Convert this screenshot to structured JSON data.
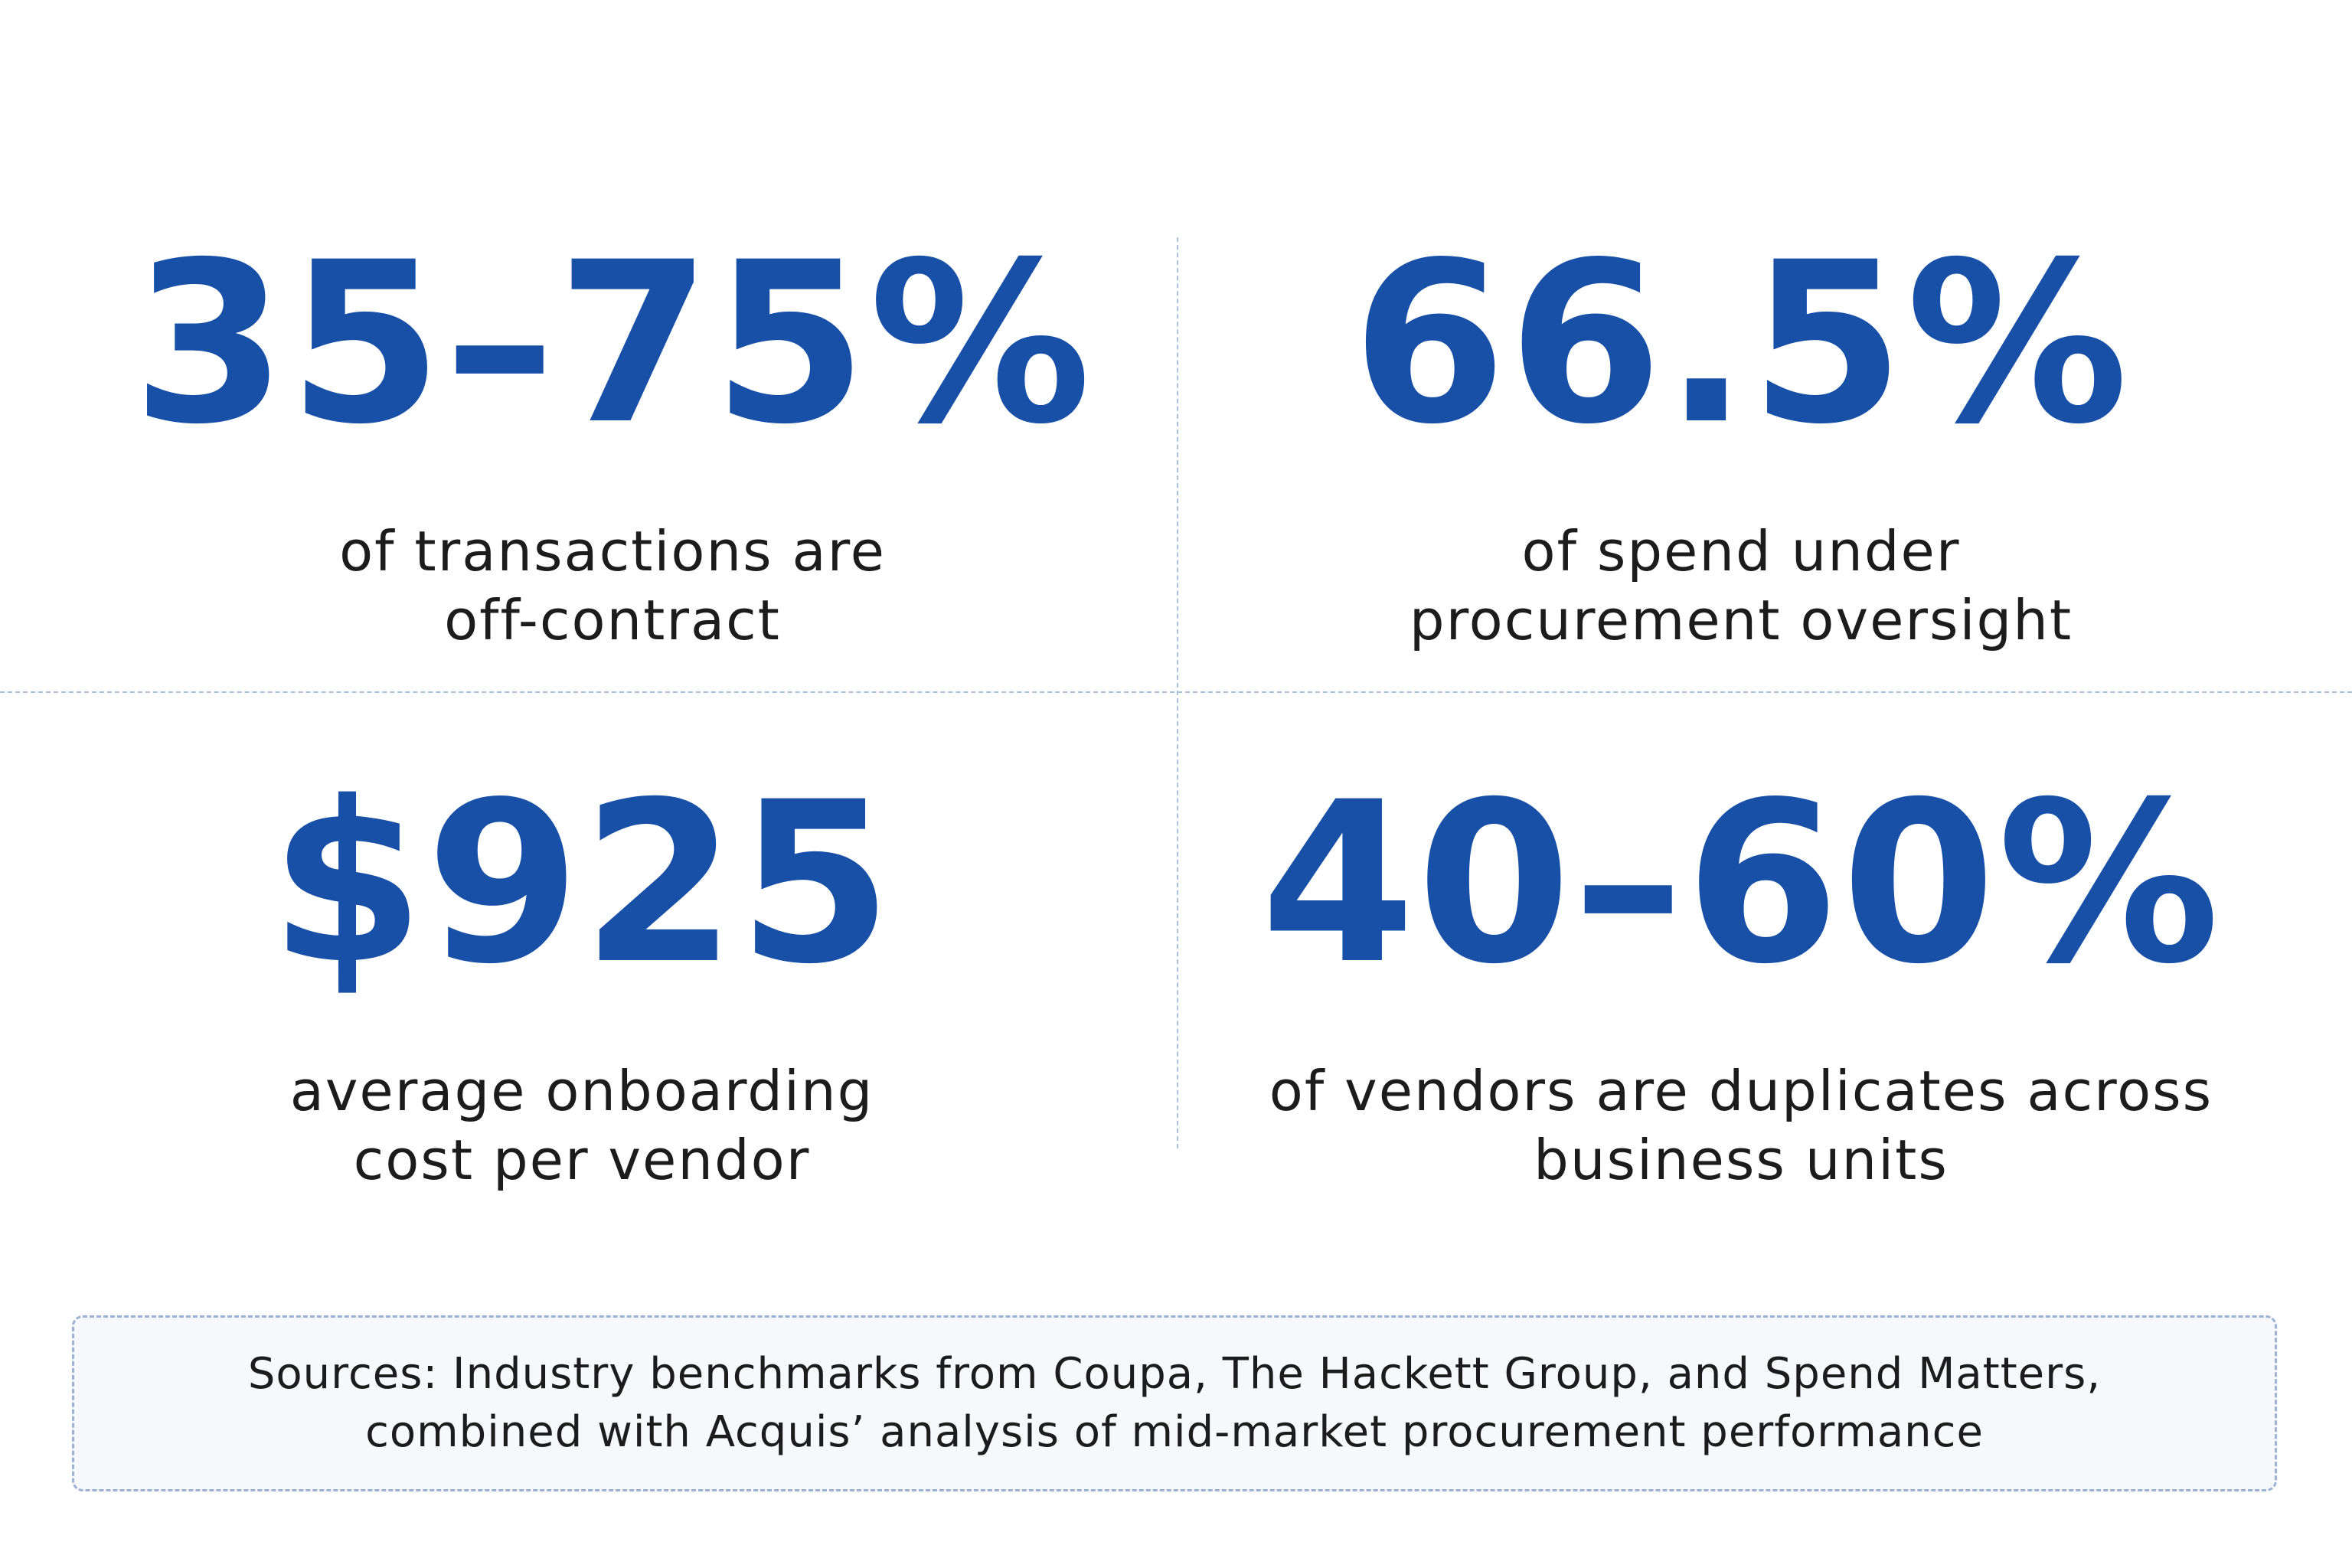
{
  "stats": [
    {
      "value": "35–75%",
      "caption_lines": [
        "of transactions are",
        "off-contract"
      ]
    },
    {
      "value": "66.5%",
      "caption_lines": [
        "of spend under",
        "procurement oversight"
      ]
    },
    {
      "value": "$925",
      "caption_lines": [
        "average onboarding",
        "cost per vendor"
      ]
    },
    {
      "value": "40–60%",
      "caption_lines": [
        "of vendors are duplicates across",
        "business units"
      ]
    }
  ],
  "sources": {
    "lines": [
      "Sources: Industry benchmarks from Coupa, The Hackett Group, and Spend Matters,",
      "combined with Acquis’ analysis of mid-market procurement performance"
    ]
  },
  "colors": {
    "accent": "#1850a8",
    "text": "#1c1c1c",
    "divider": "#a9c2e0",
    "sources_background": "#f6f8fb",
    "sources_border": "#9bb2d4"
  }
}
